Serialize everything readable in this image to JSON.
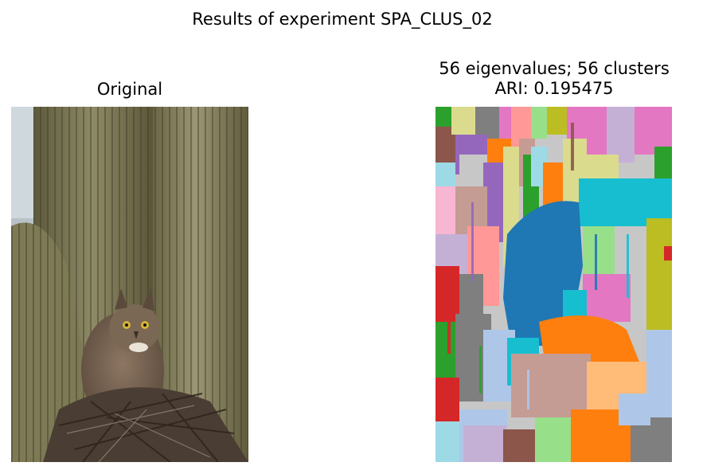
{
  "figure": {
    "suptitle": "Results of experiment SPA_CLUS_02"
  },
  "panels": {
    "original": {
      "title": "Original"
    },
    "segmentation": {
      "title_line1": "56 eigenvalues; 56 clusters",
      "title_line2": "ARI: 0.195475"
    }
  },
  "images": {
    "original": "photo of a great horned owl perched on a nest of twigs in a saguaro cactus",
    "segmentation": "cluster label map in tab20 colours"
  },
  "colors": {
    "tab20": [
      "#1f77b4",
      "#aec7e8",
      "#ff7f0e",
      "#ffbb78",
      "#2ca02c",
      "#98df8a",
      "#d62728",
      "#ff9896",
      "#9467bd",
      "#c5b0d5",
      "#8c564b",
      "#c49c94",
      "#e377c2",
      "#f7b6d2",
      "#7f7f7f",
      "#c7c7c7",
      "#bcbd22",
      "#dbdb8d",
      "#17becf",
      "#9edae5"
    ]
  }
}
